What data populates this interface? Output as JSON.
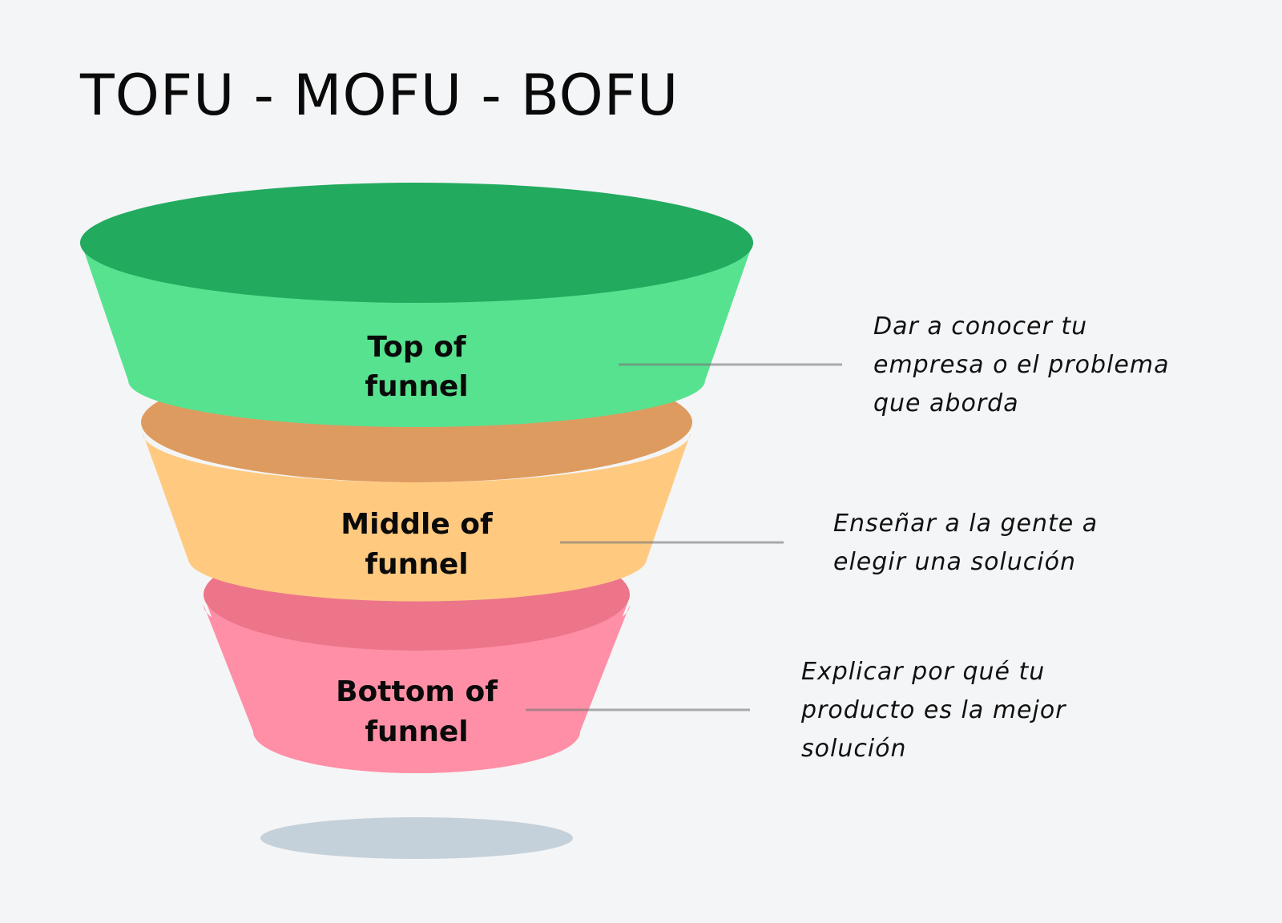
{
  "title": "TOFU - MOFU - BOFU",
  "colors": {
    "background": "#f4f5f7",
    "top_dark": "#22aa5f",
    "top_light": "#57e290",
    "middle_dark": "#de9b5f",
    "middle_light": "#ffca80",
    "bottom_dark": "#ec758a",
    "bottom_light": "#ff8fa6",
    "shadow": "#c5d1da"
  },
  "stages": [
    {
      "label_line1": "Top of",
      "label_line2": "funnel",
      "description": [
        "Dar a conocer tu",
        "empresa o el problema",
        "que aborda"
      ]
    },
    {
      "label_line1": "Middle of",
      "label_line2": "funnel",
      "description": [
        "Enseñar a la gente a",
        "elegir una solución"
      ]
    },
    {
      "label_line1": "Bottom of",
      "label_line2": "funnel",
      "description": [
        "Explicar por qué tu",
        "producto es la mejor",
        "solución"
      ]
    }
  ]
}
